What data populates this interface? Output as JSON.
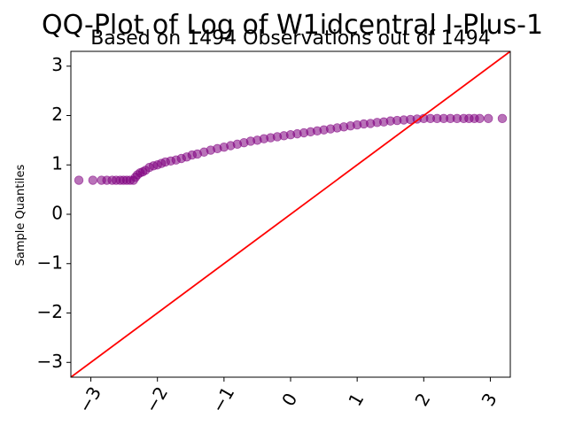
{
  "chart_data": {
    "type": "scatter",
    "title": "QQ-Plot of Log of W1idcentral I-Plus-1",
    "subtitle": "Based on 1494 Observations out of 1494",
    "xlabel": "",
    "ylabel": "Sample Quantiles",
    "xlim": [
      -3.3,
      3.3
    ],
    "ylim": [
      -3.3,
      3.3
    ],
    "xticks": [
      -3,
      -2,
      -1,
      0,
      1,
      2,
      3
    ],
    "yticks": [
      -3,
      -2,
      -1,
      0,
      1,
      2,
      3
    ],
    "xtick_labels": [
      "−3",
      "−2",
      "−1",
      "0",
      "1",
      "2",
      "3"
    ],
    "ytick_labels": [
      "−3",
      "−2",
      "−1",
      "0",
      "1",
      "2",
      "3"
    ],
    "grid": false,
    "colors": {
      "points": "#800080",
      "reference_line": "#ff0000"
    },
    "reference_line": {
      "slope": 1,
      "intercept": 0
    },
    "points": [
      [
        -3.18,
        0.69
      ],
      [
        -2.97,
        0.69
      ],
      [
        -2.84,
        0.69
      ],
      [
        -2.76,
        0.69
      ],
      [
        -2.68,
        0.69
      ],
      [
        -2.62,
        0.69
      ],
      [
        -2.56,
        0.69
      ],
      [
        -2.51,
        0.69
      ],
      [
        -2.46,
        0.69
      ],
      [
        -2.41,
        0.69
      ],
      [
        -2.36,
        0.69
      ],
      [
        -2.33,
        0.75
      ],
      [
        -2.3,
        0.8
      ],
      [
        -2.26,
        0.84
      ],
      [
        -2.22,
        0.86
      ],
      [
        -2.18,
        0.89
      ],
      [
        -2.12,
        0.95
      ],
      [
        -2.06,
        0.98
      ],
      [
        -2.0,
        1.0
      ],
      [
        -1.94,
        1.03
      ],
      [
        -1.88,
        1.06
      ],
      [
        -1.8,
        1.08
      ],
      [
        -1.72,
        1.1
      ],
      [
        -1.64,
        1.13
      ],
      [
        -1.56,
        1.16
      ],
      [
        -1.48,
        1.2
      ],
      [
        -1.4,
        1.22
      ],
      [
        -1.3,
        1.26
      ],
      [
        -1.2,
        1.3
      ],
      [
        -1.1,
        1.33
      ],
      [
        -1.0,
        1.36
      ],
      [
        -0.9,
        1.39
      ],
      [
        -0.8,
        1.42
      ],
      [
        -0.7,
        1.45
      ],
      [
        -0.6,
        1.48
      ],
      [
        -0.5,
        1.5
      ],
      [
        -0.4,
        1.53
      ],
      [
        -0.3,
        1.55
      ],
      [
        -0.2,
        1.57
      ],
      [
        -0.1,
        1.59
      ],
      [
        0.0,
        1.61
      ],
      [
        0.1,
        1.63
      ],
      [
        0.2,
        1.65
      ],
      [
        0.3,
        1.67
      ],
      [
        0.4,
        1.69
      ],
      [
        0.5,
        1.71
      ],
      [
        0.6,
        1.73
      ],
      [
        0.7,
        1.75
      ],
      [
        0.8,
        1.77
      ],
      [
        0.9,
        1.79
      ],
      [
        1.0,
        1.81
      ],
      [
        1.1,
        1.83
      ],
      [
        1.2,
        1.84
      ],
      [
        1.3,
        1.86
      ],
      [
        1.4,
        1.87
      ],
      [
        1.5,
        1.89
      ],
      [
        1.6,
        1.9
      ],
      [
        1.7,
        1.91
      ],
      [
        1.8,
        1.92
      ],
      [
        1.9,
        1.93
      ],
      [
        2.0,
        1.94
      ],
      [
        2.1,
        1.94
      ],
      [
        2.2,
        1.94
      ],
      [
        2.3,
        1.94
      ],
      [
        2.4,
        1.94
      ],
      [
        2.5,
        1.94
      ],
      [
        2.6,
        1.94
      ],
      [
        2.68,
        1.94
      ],
      [
        2.76,
        1.94
      ],
      [
        2.84,
        1.94
      ],
      [
        2.97,
        1.94
      ],
      [
        3.18,
        1.94
      ]
    ]
  }
}
